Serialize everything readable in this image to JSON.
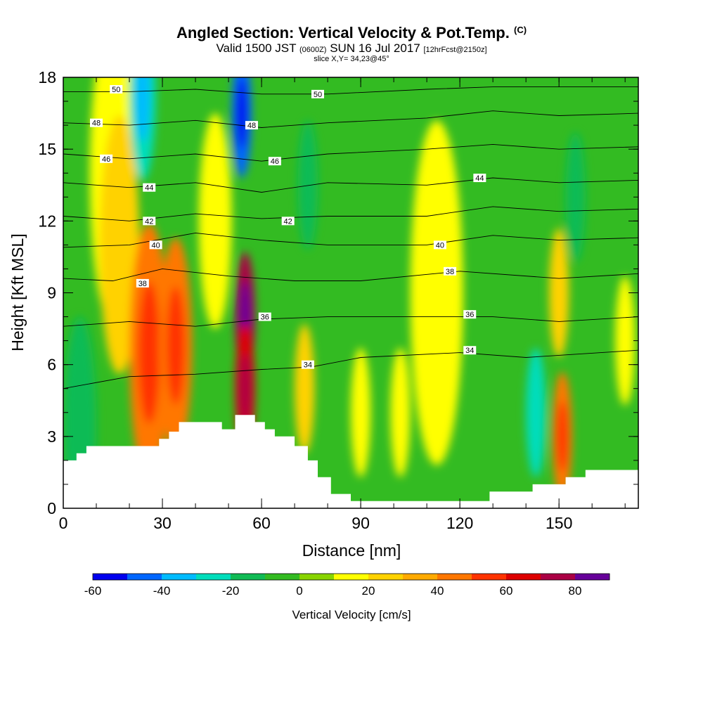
{
  "title": {
    "main": "Angled Section: Vertical Velocity & Pot.Temp.",
    "main_mark": "(C)",
    "valid_prefix": "Valid 1500 JST",
    "valid_zulu": "(0600Z)",
    "valid_date": "SUN 16 Jul 2017",
    "forecast": "[12hrFcst@2150z]",
    "slice": "slice X,Y= 34,23@45°"
  },
  "chart_data": {
    "type": "heatmap",
    "xlabel": "Distance [nm]",
    "ylabel": "Height [Kft MSL]",
    "xlim": [
      0,
      174
    ],
    "ylim": [
      0,
      18
    ],
    "x_ticks": [
      0,
      30,
      60,
      90,
      120,
      150
    ],
    "y_ticks": [
      0,
      3,
      6,
      9,
      12,
      15,
      18
    ],
    "colorbar": {
      "label": "Vertical Velocity [cm/s]",
      "ticks": [
        -60,
        -40,
        -20,
        0,
        20,
        40,
        60,
        80
      ],
      "levels": [
        -60,
        -50,
        -40,
        -30,
        -20,
        -10,
        0,
        10,
        20,
        30,
        40,
        50,
        60,
        70,
        80,
        90
      ],
      "colors": [
        "#0000ee",
        "#0066ff",
        "#00bbff",
        "#00ddbb",
        "#11bb55",
        "#33bb22",
        "#88d400",
        "#ffff00",
        "#ffd200",
        "#ffaa00",
        "#ff7700",
        "#ff3300",
        "#dd0000",
        "#aa0044",
        "#660099"
      ]
    },
    "field_cells": [
      {
        "x": 5,
        "y": 3.5,
        "value": -15,
        "r": 5
      },
      {
        "x": 15,
        "y": 14,
        "value": 15,
        "r": 7
      },
      {
        "x": 17,
        "y": 11,
        "value": 25,
        "r": 6
      },
      {
        "x": 24,
        "y": 17.3,
        "value": -30,
        "r": 4
      },
      {
        "x": 26,
        "y": 6.5,
        "value": 40,
        "r": 6
      },
      {
        "x": 34,
        "y": 6.8,
        "value": 45,
        "r": 5
      },
      {
        "x": 46,
        "y": 12,
        "value": 15,
        "r": 5
      },
      {
        "x": 54,
        "y": 16.5,
        "value": -50,
        "r": 3
      },
      {
        "x": 55,
        "y": 8,
        "value": 70,
        "r": 3
      },
      {
        "x": 55,
        "y": 5,
        "value": 60,
        "r": 3
      },
      {
        "x": 73,
        "y": 5,
        "value": 25,
        "r": 3
      },
      {
        "x": 74,
        "y": 13.5,
        "value": -20,
        "r": 3
      },
      {
        "x": 90,
        "y": 4,
        "value": 15,
        "r": 3
      },
      {
        "x": 102,
        "y": 4,
        "value": 15,
        "r": 3
      },
      {
        "x": 113,
        "y": 9,
        "value": 12,
        "r": 8
      },
      {
        "x": 143,
        "y": 4,
        "value": -25,
        "r": 3
      },
      {
        "x": 151,
        "y": 3,
        "value": 40,
        "r": 3
      },
      {
        "x": 150,
        "y": 9,
        "value": 20,
        "r": 3
      },
      {
        "x": 155,
        "y": 13,
        "value": -15,
        "r": 3
      },
      {
        "x": 170,
        "y": 7,
        "value": 15,
        "r": 3
      }
    ],
    "terrain": [
      [
        0,
        2
      ],
      [
        4,
        2
      ],
      [
        4,
        2.3
      ],
      [
        7,
        2.3
      ],
      [
        7,
        2.6
      ],
      [
        29,
        2.6
      ],
      [
        29,
        2.9
      ],
      [
        32,
        2.9
      ],
      [
        32,
        3.2
      ],
      [
        35,
        3.2
      ],
      [
        35,
        3.6
      ],
      [
        48,
        3.6
      ],
      [
        48,
        3.3
      ],
      [
        52,
        3.3
      ],
      [
        52,
        3.9
      ],
      [
        58,
        3.9
      ],
      [
        58,
        3.6
      ],
      [
        61,
        3.6
      ],
      [
        61,
        3.3
      ],
      [
        64,
        3.3
      ],
      [
        64,
        3
      ],
      [
        70,
        3
      ],
      [
        70,
        2.6
      ],
      [
        74,
        2.6
      ],
      [
        74,
        2
      ],
      [
        77,
        2
      ],
      [
        77,
        1.3
      ],
      [
        81,
        1.3
      ],
      [
        81,
        0.6
      ],
      [
        87,
        0.6
      ],
      [
        87,
        0.3
      ],
      [
        129,
        0.3
      ],
      [
        129,
        0.7
      ],
      [
        142,
        0.7
      ],
      [
        142,
        1
      ],
      [
        152,
        1
      ],
      [
        152,
        1.3
      ],
      [
        158,
        1.3
      ],
      [
        158,
        1.6
      ],
      [
        174,
        1.6
      ]
    ],
    "isentropes": [
      {
        "label": "34",
        "points": [
          [
            0,
            5
          ],
          [
            20,
            5.5
          ],
          [
            40,
            5.6
          ],
          [
            60,
            5.8
          ],
          [
            75,
            5.9
          ],
          [
            90,
            6.3
          ],
          [
            120,
            6.5
          ],
          [
            140,
            6.3
          ],
          [
            174,
            6.6
          ]
        ],
        "label_at": [
          74,
          6
        ],
        "label2_at": [
          123,
          6.6
        ]
      },
      {
        "label": "36",
        "points": [
          [
            0,
            7.6
          ],
          [
            20,
            7.8
          ],
          [
            40,
            7.6
          ],
          [
            60,
            7.9
          ],
          [
            80,
            8
          ],
          [
            110,
            8
          ],
          [
            130,
            8
          ],
          [
            150,
            7.8
          ],
          [
            174,
            8
          ]
        ],
        "label_at": [
          61,
          8
        ],
        "label2_at": [
          123,
          8.1
        ]
      },
      {
        "label": "38",
        "points": [
          [
            0,
            9.6
          ],
          [
            15,
            9.5
          ],
          [
            30,
            10
          ],
          [
            50,
            9.7
          ],
          [
            70,
            9.5
          ],
          [
            90,
            9.5
          ],
          [
            120,
            9.9
          ],
          [
            150,
            9.6
          ],
          [
            174,
            9.8
          ]
        ],
        "label_at": [
          24,
          9.4
        ],
        "label2_at": [
          117,
          9.9
        ]
      },
      {
        "label": "40",
        "points": [
          [
            0,
            10.9
          ],
          [
            20,
            11
          ],
          [
            40,
            11.5
          ],
          [
            60,
            11.2
          ],
          [
            80,
            11
          ],
          [
            110,
            11
          ],
          [
            130,
            11.4
          ],
          [
            150,
            11.2
          ],
          [
            174,
            11.3
          ]
        ],
        "label_at": [
          28,
          11
        ],
        "label2_at": [
          114,
          11
        ]
      },
      {
        "label": "42",
        "points": [
          [
            0,
            12.2
          ],
          [
            20,
            12
          ],
          [
            40,
            12.3
          ],
          [
            60,
            12.1
          ],
          [
            80,
            12.2
          ],
          [
            110,
            12.2
          ],
          [
            130,
            12.6
          ],
          [
            150,
            12.4
          ],
          [
            174,
            12.5
          ]
        ],
        "label_at": [
          26,
          12
        ],
        "label2_at": [
          68,
          12
        ]
      },
      {
        "label": "44",
        "points": [
          [
            0,
            13.6
          ],
          [
            20,
            13.4
          ],
          [
            40,
            13.6
          ],
          [
            60,
            13.2
          ],
          [
            80,
            13.6
          ],
          [
            110,
            13.5
          ],
          [
            130,
            13.8
          ],
          [
            150,
            13.6
          ],
          [
            174,
            13.7
          ]
        ],
        "label_at": [
          26,
          13.4
        ],
        "label2_at": [
          126,
          13.8
        ]
      },
      {
        "label": "46",
        "points": [
          [
            0,
            14.8
          ],
          [
            20,
            14.6
          ],
          [
            40,
            14.8
          ],
          [
            60,
            14.5
          ],
          [
            80,
            14.8
          ],
          [
            110,
            15
          ],
          [
            130,
            15.2
          ],
          [
            150,
            15
          ],
          [
            174,
            15.1
          ]
        ],
        "label_at": [
          13,
          14.6
        ],
        "label2_at": [
          64,
          14.5
        ]
      },
      {
        "label": "48",
        "points": [
          [
            0,
            16.1
          ],
          [
            20,
            16
          ],
          [
            40,
            16.2
          ],
          [
            60,
            15.9
          ],
          [
            80,
            16.1
          ],
          [
            110,
            16.3
          ],
          [
            130,
            16.6
          ],
          [
            150,
            16.4
          ],
          [
            174,
            16.5
          ]
        ],
        "label_at": [
          10,
          16.1
        ],
        "label2_at": [
          57,
          16
        ]
      },
      {
        "label": "50",
        "points": [
          [
            0,
            17.4
          ],
          [
            20,
            17.4
          ],
          [
            40,
            17.5
          ],
          [
            60,
            17.3
          ],
          [
            80,
            17.3
          ],
          [
            110,
            17.5
          ],
          [
            130,
            17.6
          ],
          [
            150,
            17.6
          ],
          [
            174,
            17.6
          ]
        ],
        "label_at": [
          16,
          17.5
        ],
        "label2_at": [
          77,
          17.3
        ]
      }
    ]
  }
}
